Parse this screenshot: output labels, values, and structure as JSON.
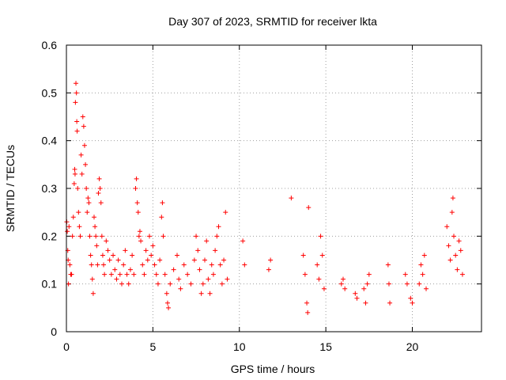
{
  "chart_data": {
    "type": "scatter",
    "title": "Day 307 of 2023, SRMTID for receiver lkta",
    "xlabel": "GPS time / hours",
    "ylabel": "SRMTID / TECUs",
    "xlim": [
      0,
      24
    ],
    "ylim": [
      0,
      0.6
    ],
    "xticks": [
      0,
      5,
      10,
      15,
      20
    ],
    "yticks": [
      0,
      0.1,
      0.2,
      0.3,
      0.4,
      0.5,
      0.6
    ],
    "xtick_labels": [
      "0",
      "5",
      "10",
      "15",
      "20"
    ],
    "ytick_labels": [
      "0",
      "0.1",
      "0.2",
      "0.3",
      "0.4",
      "0.5",
      "0.6"
    ],
    "grid": true,
    "marker": "+",
    "color": "#ff0000",
    "series": [
      {
        "name": "SRMTID",
        "points": [
          [
            0.02,
            0.23
          ],
          [
            0.05,
            0.21
          ],
          [
            0.08,
            0.17
          ],
          [
            0.1,
            0.15
          ],
          [
            0.12,
            0.1
          ],
          [
            0.15,
            0.22
          ],
          [
            0.2,
            0.14
          ],
          [
            0.25,
            0.12
          ],
          [
            0.3,
            0.12
          ],
          [
            0.35,
            0.2
          ],
          [
            0.4,
            0.24
          ],
          [
            0.45,
            0.31
          ],
          [
            0.48,
            0.34
          ],
          [
            0.5,
            0.33
          ],
          [
            0.52,
            0.48
          ],
          [
            0.55,
            0.52
          ],
          [
            0.58,
            0.5
          ],
          [
            0.6,
            0.44
          ],
          [
            0.62,
            0.42
          ],
          [
            0.65,
            0.3
          ],
          [
            0.7,
            0.25
          ],
          [
            0.75,
            0.22
          ],
          [
            0.8,
            0.2
          ],
          [
            0.85,
            0.37
          ],
          [
            0.9,
            0.33
          ],
          [
            0.95,
            0.45
          ],
          [
            1.0,
            0.43
          ],
          [
            1.05,
            0.39
          ],
          [
            1.1,
            0.35
          ],
          [
            1.15,
            0.3
          ],
          [
            1.2,
            0.25
          ],
          [
            1.25,
            0.28
          ],
          [
            1.3,
            0.27
          ],
          [
            1.35,
            0.2
          ],
          [
            1.4,
            0.16
          ],
          [
            1.45,
            0.14
          ],
          [
            1.5,
            0.11
          ],
          [
            1.55,
            0.08
          ],
          [
            1.6,
            0.24
          ],
          [
            1.65,
            0.22
          ],
          [
            1.7,
            0.2
          ],
          [
            1.75,
            0.18
          ],
          [
            1.8,
            0.14
          ],
          [
            1.85,
            0.29
          ],
          [
            1.9,
            0.32
          ],
          [
            1.95,
            0.3
          ],
          [
            2.0,
            0.27
          ],
          [
            2.05,
            0.2
          ],
          [
            2.1,
            0.16
          ],
          [
            2.15,
            0.14
          ],
          [
            2.2,
            0.12
          ],
          [
            2.3,
            0.19
          ],
          [
            2.4,
            0.17
          ],
          [
            2.5,
            0.15
          ],
          [
            2.6,
            0.12
          ],
          [
            2.7,
            0.16
          ],
          [
            2.8,
            0.13
          ],
          [
            2.9,
            0.11
          ],
          [
            3.0,
            0.15
          ],
          [
            3.1,
            0.12
          ],
          [
            3.2,
            0.1
          ],
          [
            3.3,
            0.14
          ],
          [
            3.4,
            0.17
          ],
          [
            3.5,
            0.12
          ],
          [
            3.6,
            0.1
          ],
          [
            3.7,
            0.13
          ],
          [
            3.8,
            0.16
          ],
          [
            3.9,
            0.12
          ],
          [
            4.0,
            0.3
          ],
          [
            4.05,
            0.32
          ],
          [
            4.1,
            0.27
          ],
          [
            4.15,
            0.25
          ],
          [
            4.2,
            0.2
          ],
          [
            4.25,
            0.21
          ],
          [
            4.3,
            0.19
          ],
          [
            4.4,
            0.14
          ],
          [
            4.5,
            0.12
          ],
          [
            4.6,
            0.17
          ],
          [
            4.7,
            0.15
          ],
          [
            4.8,
            0.2
          ],
          [
            4.9,
            0.16
          ],
          [
            5.0,
            0.18
          ],
          [
            5.1,
            0.14
          ],
          [
            5.2,
            0.12
          ],
          [
            5.3,
            0.1
          ],
          [
            5.4,
            0.15
          ],
          [
            5.5,
            0.24
          ],
          [
            5.55,
            0.27
          ],
          [
            5.6,
            0.2
          ],
          [
            5.7,
            0.12
          ],
          [
            5.8,
            0.08
          ],
          [
            5.85,
            0.06
          ],
          [
            5.9,
            0.05
          ],
          [
            6.0,
            0.1
          ],
          [
            6.2,
            0.13
          ],
          [
            6.4,
            0.16
          ],
          [
            6.5,
            0.11
          ],
          [
            6.6,
            0.09
          ],
          [
            6.8,
            0.14
          ],
          [
            7.0,
            0.12
          ],
          [
            7.2,
            0.1
          ],
          [
            7.4,
            0.15
          ],
          [
            7.5,
            0.2
          ],
          [
            7.6,
            0.17
          ],
          [
            7.7,
            0.13
          ],
          [
            7.8,
            0.08
          ],
          [
            7.9,
            0.1
          ],
          [
            8.0,
            0.15
          ],
          [
            8.1,
            0.19
          ],
          [
            8.2,
            0.11
          ],
          [
            8.3,
            0.08
          ],
          [
            8.4,
            0.14
          ],
          [
            8.5,
            0.12
          ],
          [
            8.6,
            0.17
          ],
          [
            8.7,
            0.2
          ],
          [
            8.8,
            0.22
          ],
          [
            8.9,
            0.14
          ],
          [
            9.0,
            0.1
          ],
          [
            9.1,
            0.15
          ],
          [
            9.2,
            0.25
          ],
          [
            9.3,
            0.11
          ],
          [
            10.2,
            0.19
          ],
          [
            10.3,
            0.14
          ],
          [
            11.7,
            0.13
          ],
          [
            11.8,
            0.15
          ],
          [
            13.0,
            0.28
          ],
          [
            13.7,
            0.16
          ],
          [
            13.8,
            0.12
          ],
          [
            13.9,
            0.06
          ],
          [
            13.95,
            0.04
          ],
          [
            14.0,
            0.26
          ],
          [
            14.5,
            0.14
          ],
          [
            14.6,
            0.11
          ],
          [
            14.7,
            0.2
          ],
          [
            14.8,
            0.16
          ],
          [
            14.9,
            0.09
          ],
          [
            15.9,
            0.1
          ],
          [
            16.0,
            0.11
          ],
          [
            16.1,
            0.09
          ],
          [
            16.7,
            0.08
          ],
          [
            16.8,
            0.07
          ],
          [
            17.2,
            0.09
          ],
          [
            17.3,
            0.06
          ],
          [
            17.4,
            0.1
          ],
          [
            17.5,
            0.12
          ],
          [
            18.6,
            0.14
          ],
          [
            18.65,
            0.1
          ],
          [
            18.7,
            0.06
          ],
          [
            19.6,
            0.12
          ],
          [
            19.7,
            0.1
          ],
          [
            19.9,
            0.07
          ],
          [
            20.0,
            0.06
          ],
          [
            20.4,
            0.1
          ],
          [
            20.5,
            0.14
          ],
          [
            20.6,
            0.12
          ],
          [
            20.7,
            0.16
          ],
          [
            20.8,
            0.09
          ],
          [
            22.0,
            0.22
          ],
          [
            22.1,
            0.18
          ],
          [
            22.2,
            0.15
          ],
          [
            22.3,
            0.25
          ],
          [
            22.35,
            0.28
          ],
          [
            22.4,
            0.2
          ],
          [
            22.5,
            0.16
          ],
          [
            22.6,
            0.13
          ],
          [
            22.7,
            0.19
          ],
          [
            22.8,
            0.17
          ],
          [
            22.9,
            0.12
          ]
        ]
      }
    ]
  }
}
